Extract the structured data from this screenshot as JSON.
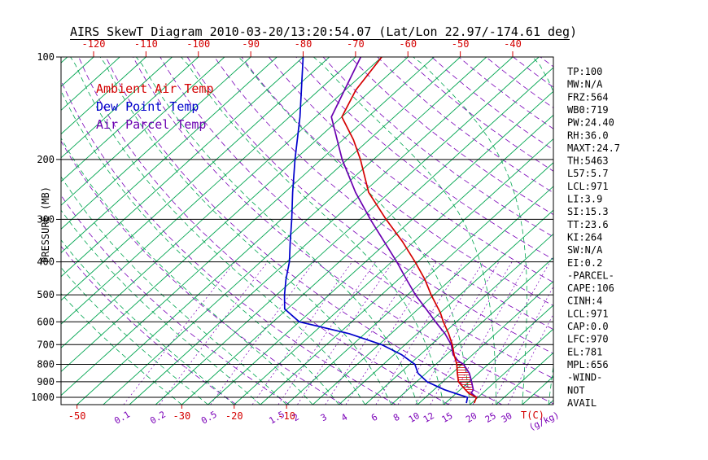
{
  "stats_panel": {
    "lines": [
      "TP:100",
      "MW:N/A",
      "FRZ:564",
      "WB0:719",
      "PW:24.40",
      "RH:36.0",
      "MAXT:24.7",
      "TH:5463",
      "L57:5.7",
      "LCL:971",
      "LI:3.9",
      "SI:15.3",
      "TT:23.6",
      "KI:264",
      "SW:N/A",
      "EI:0.2",
      "-PARCEL-",
      "CAPE:106",
      "CINH:4",
      "LCL:971",
      "CAP:0.0",
      "LFC:970",
      "EL:781",
      "MPL:656",
      "-WIND-",
      "NOT",
      "AVAIL"
    ]
  },
  "chart_data": {
    "type": "line",
    "variant": "skew-t-log-p",
    "title": "AIRS SkewT Diagram 2010-03-20/13:20:54.07 (Lat/Lon 22.97/-174.61 deg)",
    "colors": {
      "ambient_temp": "#d40000",
      "dew_point": "#0000cc",
      "air_parcel": "#6a00b0",
      "isotherm_green": "#00a550",
      "adiabat_purple": "#7a00b8",
      "axis_black": "#000000"
    },
    "legend": [
      {
        "label": "Ambient Air Temp",
        "color": "ambient_temp"
      },
      {
        "label": "Dew Point Temp",
        "color": "dew_point"
      },
      {
        "label": "Air Parcel Temp",
        "color": "air_parcel"
      }
    ],
    "axes": {
      "pressure": {
        "title": "PRESSURE (MB)",
        "scale": "log",
        "range_mb": [
          100,
          1050
        ],
        "ticks_mb": [
          100,
          200,
          300,
          400,
          500,
          600,
          700,
          800,
          900,
          1000
        ]
      },
      "temperature_top": {
        "ticks_c": [
          -120,
          -110,
          -100,
          -90,
          -80,
          -70,
          -60,
          -50,
          -40
        ]
      },
      "temperature_bottom": {
        "ticks_c": [
          -50,
          -30,
          -20,
          -10
        ],
        "unit_label": "T(C)"
      },
      "mixing_ratio": {
        "tick_labels": [
          "0.1",
          "0.2",
          "0.5",
          "1.5",
          "2",
          "3",
          "4",
          "6",
          "8",
          "10",
          "12",
          "15",
          "20",
          "25",
          "30"
        ],
        "unit_label": "(g/kg)"
      }
    },
    "grid": {
      "isotherms_c": {
        "min": -125,
        "max": 40,
        "step": 5
      },
      "dry_adiabats_theta_k": {
        "min": 250,
        "max": 460,
        "step": 10
      },
      "moist_adiabats_surface_c": {
        "min": -30,
        "max": 45,
        "step": 5
      },
      "mixing_ratio_lines_g_kg": [
        0.1,
        0.2,
        0.5,
        1,
        1.5,
        2,
        3,
        4,
        6,
        8,
        10,
        12,
        15,
        20,
        25,
        30
      ]
    },
    "series": [
      {
        "name": "Ambient Air Temp",
        "key": "ambient_temp",
        "points_mb_c": [
          [
            1040,
            25.5
          ],
          [
            1000,
            24.7
          ],
          [
            975,
            22.5
          ],
          [
            950,
            21.0
          ],
          [
            925,
            19.5
          ],
          [
            900,
            18.0
          ],
          [
            850,
            16.0
          ],
          [
            800,
            14.0
          ],
          [
            750,
            11.5
          ],
          [
            700,
            9.0
          ],
          [
            650,
            6.0
          ],
          [
            600,
            2.5
          ],
          [
            564,
            0.0
          ],
          [
            500,
            -5.5
          ],
          [
            450,
            -10.0
          ],
          [
            400,
            -15.5
          ],
          [
            350,
            -22.0
          ],
          [
            300,
            -30.0
          ],
          [
            250,
            -39.0
          ],
          [
            200,
            -47.5
          ],
          [
            175,
            -53.0
          ],
          [
            150,
            -60.0
          ],
          [
            125,
            -63.0
          ],
          [
            100,
            -65.0
          ]
        ]
      },
      {
        "name": "Dew Point Temp",
        "key": "dew_point",
        "points_mb_c": [
          [
            1040,
            24.0
          ],
          [
            1000,
            23.0
          ],
          [
            975,
            20.0
          ],
          [
            950,
            17.0
          ],
          [
            925,
            14.5
          ],
          [
            900,
            12.0
          ],
          [
            850,
            8.5
          ],
          [
            800,
            6.0
          ],
          [
            750,
            1.5
          ],
          [
            700,
            -4.5
          ],
          [
            650,
            -13.0
          ],
          [
            600,
            -25.0
          ],
          [
            550,
            -30.5
          ],
          [
            500,
            -33.5
          ],
          [
            450,
            -36.5
          ],
          [
            400,
            -39.5
          ],
          [
            350,
            -43.5
          ],
          [
            300,
            -48.0
          ],
          [
            250,
            -53.5
          ],
          [
            200,
            -60.0
          ],
          [
            150,
            -68.0
          ],
          [
            100,
            -80.0
          ]
        ]
      },
      {
        "name": "Air Parcel Temp",
        "key": "air_parcel",
        "points_mb_c": [
          [
            1000,
            24.7
          ],
          [
            971,
            22.8
          ],
          [
            950,
            22.5
          ],
          [
            900,
            20.5
          ],
          [
            850,
            18.3
          ],
          [
            800,
            15.3
          ],
          [
            781,
            13.5
          ],
          [
            750,
            11.3
          ],
          [
            700,
            8.8
          ],
          [
            650,
            5.3
          ],
          [
            600,
            1.0
          ],
          [
            550,
            -3.5
          ],
          [
            500,
            -8.5
          ],
          [
            450,
            -13.5
          ],
          [
            400,
            -19.0
          ],
          [
            350,
            -25.5
          ],
          [
            300,
            -33.0
          ],
          [
            250,
            -41.5
          ],
          [
            200,
            -51.0
          ],
          [
            150,
            -62.0
          ],
          [
            100,
            -69.0
          ]
        ]
      }
    ],
    "cape_region": {
      "pressure_top_mb": 781,
      "pressure_bottom_mb": 971
    }
  }
}
